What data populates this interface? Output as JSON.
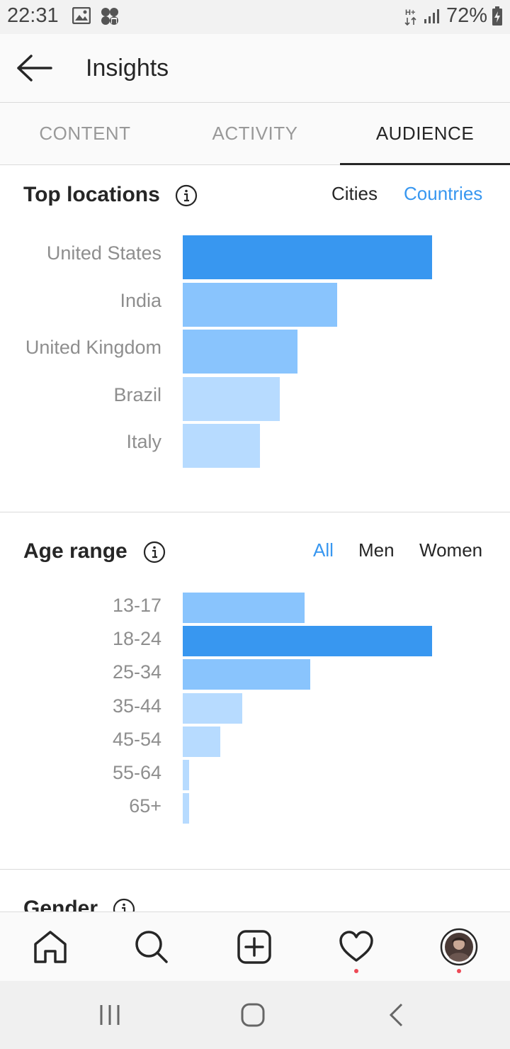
{
  "status_bar": {
    "time": "22:31",
    "network": "H+",
    "battery": "72%"
  },
  "app_bar": {
    "title": "Insights"
  },
  "tabs": [
    {
      "label": "CONTENT",
      "active": false
    },
    {
      "label": "ACTIVITY",
      "active": false
    },
    {
      "label": "AUDIENCE",
      "active": true
    }
  ],
  "top_locations": {
    "title": "Top locations",
    "filters": [
      {
        "label": "Cities",
        "active": false
      },
      {
        "label": "Countries",
        "active": true
      }
    ]
  },
  "age_range": {
    "title": "Age range",
    "filters": [
      {
        "label": "All",
        "active": true
      },
      {
        "label": "Men",
        "active": false
      },
      {
        "label": "Women",
        "active": false
      }
    ]
  },
  "gender": {
    "title": "Gender"
  },
  "colors": {
    "bar_dark": "#3897f0",
    "bar_mid": "#89c4fd",
    "bar_light": "#b7dbff",
    "accent": "#3897f0",
    "notification_dot": "#ed4956"
  },
  "chart_data": [
    {
      "type": "bar",
      "orientation": "horizontal",
      "categories": [
        "United States",
        "India",
        "United Kingdom",
        "Brazil",
        "Italy"
      ],
      "values": [
        100,
        62,
        46,
        39,
        31
      ],
      "unit": "relative share"
    },
    {
      "type": "bar",
      "orientation": "horizontal",
      "categories": [
        "13-17",
        "18-24",
        "25-34",
        "35-44",
        "45-54",
        "55-64",
        "65+"
      ],
      "values": [
        49,
        100,
        51,
        24,
        15,
        2,
        2
      ],
      "unit": "relative share"
    }
  ],
  "bottom_nav": [
    {
      "icon": "home-icon"
    },
    {
      "icon": "search-icon"
    },
    {
      "icon": "add-post-icon"
    },
    {
      "icon": "heart-icon",
      "notification": true
    },
    {
      "icon": "profile-avatar",
      "notification": true
    }
  ]
}
